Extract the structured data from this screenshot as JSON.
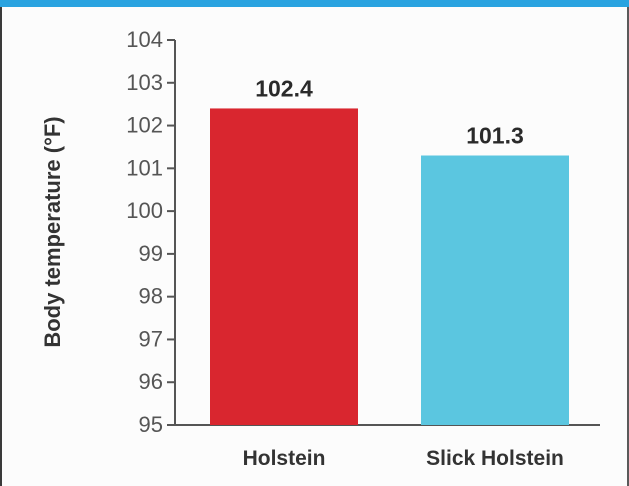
{
  "colors": {
    "top_stripe": "#2aa3e0",
    "axis": "#555555"
  },
  "chart_data": {
    "type": "bar",
    "title": "",
    "xlabel": "",
    "ylabel": "Body temperature (°F)",
    "ylim": [
      95,
      104
    ],
    "yticks": [
      95,
      96,
      97,
      98,
      99,
      100,
      101,
      102,
      103,
      104
    ],
    "categories": [
      "Holstein",
      "Slick Holstein"
    ],
    "values": [
      102.4,
      101.3
    ],
    "data_labels": [
      "102.4",
      "101.3"
    ],
    "bar_colors": [
      "#d9262f",
      "#5bc6e0"
    ],
    "grid": false,
    "legend": "none"
  }
}
